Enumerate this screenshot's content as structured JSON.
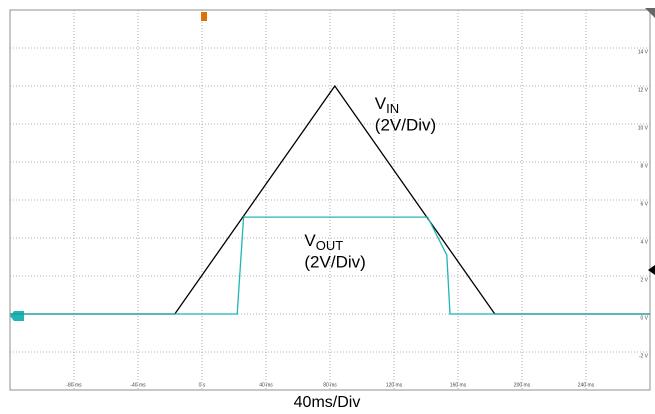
{
  "chart_data": {
    "type": "line",
    "x_label": "40ms/Div",
    "xlim": [
      -120,
      280
    ],
    "ylim": [
      -4,
      16
    ],
    "xticks": [
      {
        "value": -80,
        "label": "-80 ms"
      },
      {
        "value": -40,
        "label": "-40 ms"
      },
      {
        "value": 0,
        "label": "0 s"
      },
      {
        "value": 40,
        "label": "40 ms"
      },
      {
        "value": 80,
        "label": "80 ms"
      },
      {
        "value": 120,
        "label": "120 ms"
      },
      {
        "value": 160,
        "label": "160 ms"
      },
      {
        "value": 200,
        "label": "200 ms"
      },
      {
        "value": 240,
        "label": "240 ms"
      }
    ],
    "yticks": [
      {
        "value": -2,
        "label": "-2 V"
      },
      {
        "value": 0,
        "label": "0 V"
      },
      {
        "value": 2,
        "label": "2 V"
      },
      {
        "value": 4,
        "label": "4 V"
      },
      {
        "value": 6,
        "label": "6 V"
      },
      {
        "value": 8,
        "label": "8 V"
      },
      {
        "value": 10,
        "label": "10 V"
      },
      {
        "value": 12,
        "label": "12 V"
      },
      {
        "value": 14,
        "label": "14 V"
      }
    ],
    "grid": true,
    "series": [
      {
        "color": "#000000",
        "x": [
          -120,
          -17,
          83,
          183,
          280
        ],
        "values": [
          0,
          0,
          12,
          0,
          0
        ]
      },
      {
        "color": "#1fb5b5",
        "x": [
          -120,
          22,
          26,
          141,
          153,
          155,
          280
        ],
        "values": [
          0,
          0,
          5.1,
          5.1,
          3.1,
          0,
          0
        ]
      }
    ],
    "annotations": [
      {
        "text": "V",
        "sub": "IN",
        "note": "(2V/Div)",
        "x": 108,
        "y": 11
      },
      {
        "text": "V",
        "sub": "OUT",
        "note": "(2V/Div)",
        "x": 64,
        "y": 3.8
      }
    ]
  }
}
